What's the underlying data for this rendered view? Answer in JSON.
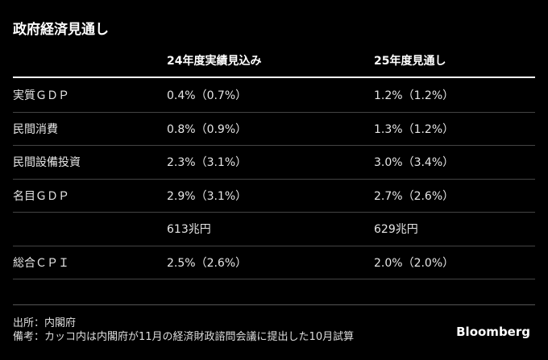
{
  "title": "政府経済見通し",
  "table": {
    "columns": [
      "24年度実績見込み",
      "25年度見通し"
    ],
    "rows": [
      {
        "label": "実質ＧＤＰ",
        "cells": [
          "0.4%（0.7%）",
          "1.2%（1.2%）"
        ]
      },
      {
        "label": "民間消費",
        "cells": [
          "0.8%（0.9%）",
          "1.3%（1.2%）"
        ]
      },
      {
        "label": "民間設備投資",
        "cells": [
          "2.3%（3.1%）",
          "3.0%（3.4%）"
        ]
      },
      {
        "label": "名目ＧＤＰ",
        "cells": [
          "2.9%（3.1%）",
          "2.7%（2.6%）"
        ]
      },
      {
        "cells": [
          "613兆円",
          "629兆円"
        ]
      },
      {
        "label": "総合ＣＰＩ",
        "cells": [
          "2.5%（2.6%）",
          "2.0%（2.0%）"
        ]
      }
    ]
  },
  "footer": {
    "source": "出所：内閣府",
    "note": "備考：カッコ内は内閣府が11月の経済財政諮問会議に提出した10月試算",
    "brand": "Bloomberg"
  }
}
